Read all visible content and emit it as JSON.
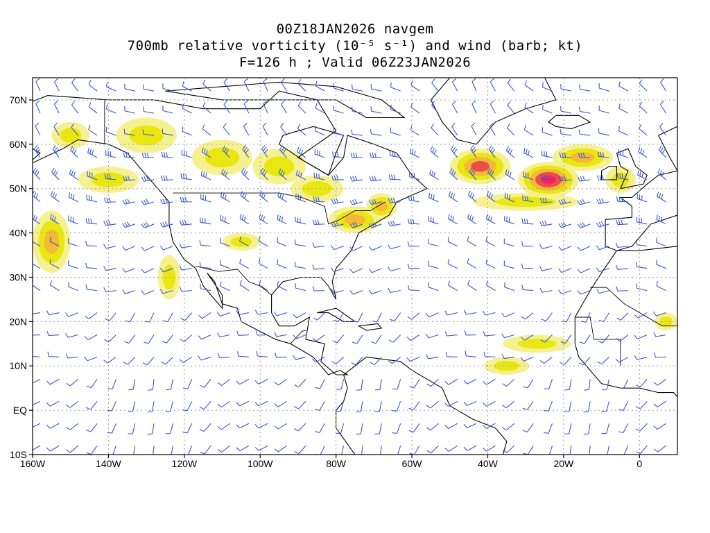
{
  "header": {
    "line1": "00Z18JAN2026 navgem",
    "line2": "700mb relative vorticity (10⁻⁵ s⁻¹) and wind (barb; kt)",
    "line3": "F=126 h ; Valid 06Z23JAN2026"
  },
  "axes": {
    "lon_ticks": [
      {
        "lon": -160,
        "label": "160W"
      },
      {
        "lon": -140,
        "label": "140W"
      },
      {
        "lon": -120,
        "label": "120W"
      },
      {
        "lon": -100,
        "label": "100W"
      },
      {
        "lon": -80,
        "label": "80W"
      },
      {
        "lon": -60,
        "label": "60W"
      },
      {
        "lon": -40,
        "label": "40W"
      },
      {
        "lon": -20,
        "label": "20W"
      },
      {
        "lon": 0,
        "label": "0"
      }
    ],
    "lat_ticks": [
      {
        "lat": 70,
        "label": "70N"
      },
      {
        "lat": 60,
        "label": "60N"
      },
      {
        "lat": 50,
        "label": "50N"
      },
      {
        "lat": 40,
        "label": "40N"
      },
      {
        "lat": 30,
        "label": "30N"
      },
      {
        "lat": 20,
        "label": "20N"
      },
      {
        "lat": 10,
        "label": "10N"
      },
      {
        "lat": 0,
        "label": "EQ"
      },
      {
        "lat": -10,
        "label": "10S"
      }
    ],
    "lon_range": [
      -160,
      10
    ],
    "lat_range": [
      -10,
      75
    ]
  },
  "colors": {
    "barb": "#3355dd",
    "coast": "#000000",
    "grid": "#9a9a9a",
    "shade_light": "#f6f08a",
    "shade_yellow": "#e8e60c",
    "shade_orange": "#f4b63a",
    "shade_red": "#e8484a",
    "shade_core": "#ff1e5a"
  },
  "vorticity_regions": [
    {
      "lon": -130,
      "lat": 62,
      "rlon": 8,
      "rlat": 4,
      "level": 1
    },
    {
      "lon": -140,
      "lat": 52,
      "rlon": 8,
      "rlat": 3,
      "level": 1
    },
    {
      "lon": -155,
      "lat": 38,
      "rlon": 5,
      "rlat": 7,
      "level": 2
    },
    {
      "lon": -124,
      "lat": 30,
      "rlon": 3,
      "rlat": 5,
      "level": 1
    },
    {
      "lon": -110,
      "lat": 57,
      "rlon": 8,
      "rlat": 4,
      "level": 1
    },
    {
      "lon": -95,
      "lat": 55,
      "rlon": 7,
      "rlat": 4,
      "level": 1
    },
    {
      "lon": -85,
      "lat": 50,
      "rlon": 7,
      "rlat": 3,
      "level": 1
    },
    {
      "lon": -75,
      "lat": 43,
      "rlon": 7,
      "rlat": 3,
      "level": 2
    },
    {
      "lon": -68,
      "lat": 46,
      "rlon": 4,
      "rlat": 3,
      "level": 2
    },
    {
      "lon": -42,
      "lat": 55,
      "rlon": 8,
      "rlat": 4,
      "level": 3
    },
    {
      "lon": -24,
      "lat": 52,
      "rlon": 8,
      "rlat": 4,
      "level": 4
    },
    {
      "lon": -30,
      "lat": 47,
      "rlon": 14,
      "rlat": 2,
      "level": 1
    },
    {
      "lon": -15,
      "lat": 57,
      "rlon": 8,
      "rlat": 3,
      "level": 2
    },
    {
      "lon": -5,
      "lat": 52,
      "rlon": 4,
      "rlat": 3,
      "level": 1
    },
    {
      "lon": -27,
      "lat": 15,
      "rlon": 9,
      "rlat": 2,
      "level": 1
    },
    {
      "lon": -35,
      "lat": 10,
      "rlon": 6,
      "rlat": 2,
      "level": 1
    },
    {
      "lon": -150,
      "lat": 62,
      "rlon": 5,
      "rlat": 3,
      "level": 1
    },
    {
      "lon": -105,
      "lat": 38,
      "rlon": 5,
      "rlat": 2,
      "level": 1
    },
    {
      "lon": 7,
      "lat": 20,
      "rlon": 3,
      "rlat": 2,
      "level": 1
    }
  ]
}
